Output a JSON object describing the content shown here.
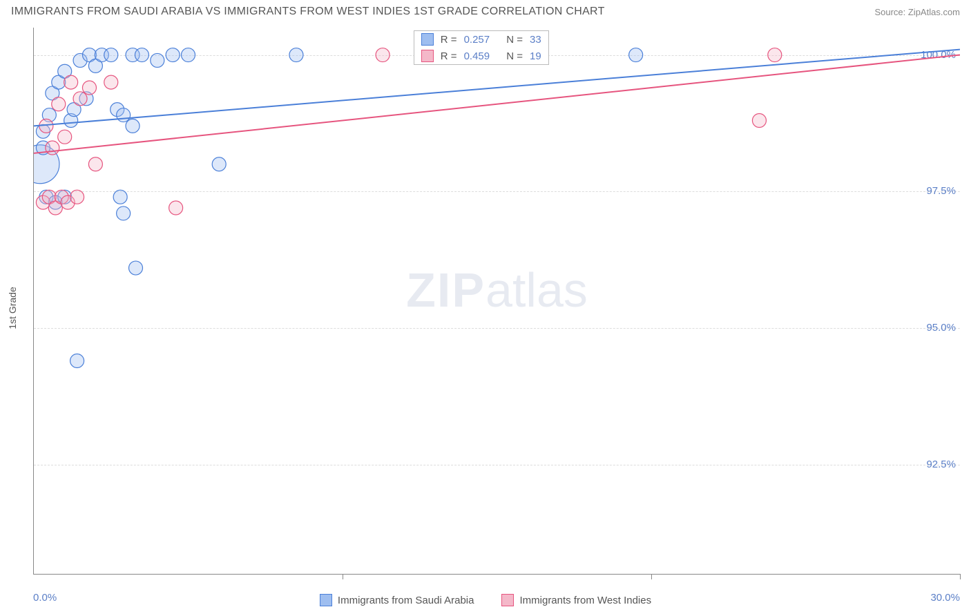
{
  "header": {
    "title": "IMMIGRANTS FROM SAUDI ARABIA VS IMMIGRANTS FROM WEST INDIES 1ST GRADE CORRELATION CHART",
    "source": "Source: ZipAtlas.com"
  },
  "watermark": {
    "zip": "ZIP",
    "atlas": "atlas"
  },
  "chart": {
    "type": "scatter",
    "background_color": "#ffffff",
    "grid_color": "#dcdcdc",
    "axis_color": "#888888",
    "ylabel": "1st Grade",
    "ylabel_color": "#555555",
    "xlim": [
      0,
      30
    ],
    "ylim": [
      90.5,
      100.5
    ],
    "x_tick_positions": [
      0,
      10,
      20,
      30
    ],
    "x_tick_labels": {
      "left": "0.0%",
      "right": "30.0%"
    },
    "y_ticks": [
      {
        "v": 92.5,
        "label": "92.5%"
      },
      {
        "v": 95.0,
        "label": "95.0%"
      },
      {
        "v": 97.5,
        "label": "97.5%"
      },
      {
        "v": 100.0,
        "label": "100.0%"
      }
    ],
    "y_tick_color": "#5b7fc7",
    "series": [
      {
        "name": "Immigrants from Saudi Arabia",
        "color_fill": "#9ebef0",
        "color_stroke": "#4a7fd8",
        "r_label": "R =",
        "r_value": "0.257",
        "n_label": "N =",
        "n_value": "33",
        "trend": {
          "y_at_x0": 98.7,
          "y_at_x30": 100.1
        },
        "points": [
          {
            "x": 0.2,
            "y": 98.0,
            "r": 28
          },
          {
            "x": 0.3,
            "y": 98.6,
            "r": 10
          },
          {
            "x": 0.5,
            "y": 98.9,
            "r": 10
          },
          {
            "x": 0.6,
            "y": 99.3,
            "r": 10
          },
          {
            "x": 0.8,
            "y": 99.5,
            "r": 10
          },
          {
            "x": 1.0,
            "y": 99.7,
            "r": 10
          },
          {
            "x": 1.2,
            "y": 98.8,
            "r": 10
          },
          {
            "x": 1.3,
            "y": 99.0,
            "r": 10
          },
          {
            "x": 1.5,
            "y": 99.9,
            "r": 10
          },
          {
            "x": 1.7,
            "y": 99.2,
            "r": 10
          },
          {
            "x": 1.8,
            "y": 100.0,
            "r": 10
          },
          {
            "x": 2.0,
            "y": 99.8,
            "r": 10
          },
          {
            "x": 2.2,
            "y": 100.0,
            "r": 10
          },
          {
            "x": 2.5,
            "y": 100.0,
            "r": 10
          },
          {
            "x": 2.7,
            "y": 99.0,
            "r": 10
          },
          {
            "x": 2.9,
            "y": 98.9,
            "r": 10
          },
          {
            "x": 3.2,
            "y": 100.0,
            "r": 10
          },
          {
            "x": 3.5,
            "y": 100.0,
            "r": 10
          },
          {
            "x": 4.0,
            "y": 99.9,
            "r": 10
          },
          {
            "x": 4.5,
            "y": 100.0,
            "r": 10
          },
          {
            "x": 5.0,
            "y": 100.0,
            "r": 10
          },
          {
            "x": 6.0,
            "y": 98.0,
            "r": 10
          },
          {
            "x": 8.5,
            "y": 100.0,
            "r": 10
          },
          {
            "x": 2.8,
            "y": 97.4,
            "r": 10
          },
          {
            "x": 2.9,
            "y": 97.1,
            "r": 10
          },
          {
            "x": 3.3,
            "y": 96.1,
            "r": 10
          },
          {
            "x": 1.4,
            "y": 94.4,
            "r": 10
          },
          {
            "x": 19.5,
            "y": 100.0,
            "r": 10
          },
          {
            "x": 0.4,
            "y": 97.4,
            "r": 10
          },
          {
            "x": 0.7,
            "y": 97.3,
            "r": 10
          },
          {
            "x": 1.0,
            "y": 97.4,
            "r": 10
          },
          {
            "x": 0.3,
            "y": 98.3,
            "r": 10
          },
          {
            "x": 3.2,
            "y": 98.7,
            "r": 10
          }
        ]
      },
      {
        "name": "Immigrants from West Indies",
        "color_fill": "#f4b8c9",
        "color_stroke": "#e6547e",
        "r_label": "R =",
        "r_value": "0.459",
        "n_label": "N =",
        "n_value": "19",
        "trend": {
          "y_at_x0": 98.2,
          "y_at_x30": 100.0
        },
        "points": [
          {
            "x": 0.3,
            "y": 97.3,
            "r": 10
          },
          {
            "x": 0.5,
            "y": 97.4,
            "r": 10
          },
          {
            "x": 0.7,
            "y": 97.2,
            "r": 10
          },
          {
            "x": 0.9,
            "y": 97.4,
            "r": 10
          },
          {
            "x": 1.1,
            "y": 97.3,
            "r": 10
          },
          {
            "x": 1.2,
            "y": 99.5,
            "r": 10
          },
          {
            "x": 1.5,
            "y": 99.2,
            "r": 10
          },
          {
            "x": 1.8,
            "y": 99.4,
            "r": 10
          },
          {
            "x": 2.0,
            "y": 98.0,
            "r": 10
          },
          {
            "x": 2.5,
            "y": 99.5,
            "r": 10
          },
          {
            "x": 4.6,
            "y": 97.2,
            "r": 10
          },
          {
            "x": 11.3,
            "y": 100.0,
            "r": 10
          },
          {
            "x": 23.5,
            "y": 98.8,
            "r": 10
          },
          {
            "x": 24.0,
            "y": 100.0,
            "r": 10
          },
          {
            "x": 0.4,
            "y": 98.7,
            "r": 10
          },
          {
            "x": 0.6,
            "y": 98.3,
            "r": 10
          },
          {
            "x": 1.0,
            "y": 98.5,
            "r": 10
          },
          {
            "x": 0.8,
            "y": 99.1,
            "r": 10
          },
          {
            "x": 1.4,
            "y": 97.4,
            "r": 10
          }
        ]
      }
    ],
    "legend": {
      "text_color": "#555555"
    }
  }
}
